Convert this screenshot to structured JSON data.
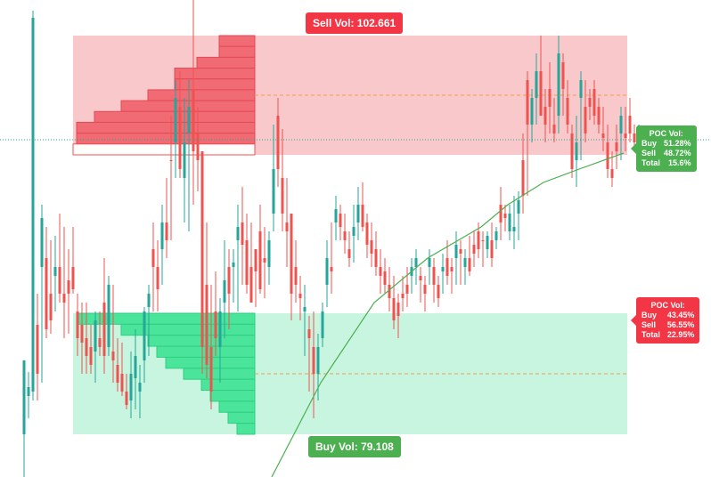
{
  "chart_data": {
    "type": "candlestick",
    "title": "",
    "xlabel": "",
    "ylabel": "",
    "grid": false,
    "colors": {
      "up": "#26a69a",
      "down": "#ef5350",
      "sell_zone_fill": "#f9c8cb",
      "buy_zone_fill": "#c8f5df",
      "sell_profile": "#f16b74",
      "buy_profile": "#4ae49a",
      "poc_line": "#f0a04b",
      "moving_average": "#4caf50",
      "last_price_line": "#26a69a"
    },
    "ylim": [
      0,
      536
    ],
    "candles": [
      [
        488,
        405,
        550,
        405
      ],
      [
        445,
        418,
        470,
        435
      ],
      [
        440,
        12,
        450,
        20
      ],
      [
        365,
        330,
        450,
        420
      ],
      [
        300,
        230,
        430,
        245
      ],
      [
        290,
        255,
        380,
        370
      ],
      [
        330,
        270,
        375,
        360
      ],
      [
        310,
        265,
        350,
        300
      ],
      [
        300,
        240,
        340,
        330
      ],
      [
        330,
        255,
        380,
        340
      ],
      [
        315,
        280,
        375,
        330
      ],
      [
        300,
        255,
        330,
        325
      ],
      [
        350,
        330,
        400,
        380
      ],
      [
        365,
        340,
        420,
        385
      ],
      [
        380,
        340,
        420,
        400
      ],
      [
        390,
        365,
        420,
        410
      ],
      [
        395,
        350,
        430,
        360
      ],
      [
        380,
        350,
        400,
        390
      ],
      [
        340,
        290,
        420,
        400
      ],
      [
        390,
        310,
        400,
        320
      ],
      [
        395,
        320,
        430,
        405
      ],
      [
        410,
        380,
        440,
        430
      ],
      [
        420,
        385,
        445,
        440
      ],
      [
        440,
        420,
        460,
        455
      ],
      [
        450,
        395,
        470,
        420
      ],
      [
        425,
        370,
        460,
        400
      ],
      [
        440,
        410,
        470,
        430
      ],
      [
        405,
        345,
        430,
        350
      ],
      [
        345,
        320,
        400,
        330
      ],
      [
        280,
        250,
        350,
        300
      ],
      [
        300,
        270,
        350,
        325
      ],
      [
        280,
        230,
        320,
        250
      ],
      [
        250,
        200,
        290,
        270
      ],
      [
        180,
        130,
        270,
        180
      ],
      [
        160,
        90,
        200,
        110
      ],
      [
        120,
        80,
        200,
        190
      ],
      [
        200,
        110,
        250,
        160
      ],
      [
        150,
        90,
        260,
        120
      ],
      [
        100,
        0,
        230,
        170
      ],
      [
        150,
        120,
        215,
        180
      ],
      [
        170,
        200,
        420,
        390
      ],
      [
        320,
        250,
        425,
        410
      ],
      [
        390,
        320,
        460,
        440
      ],
      [
        350,
        305,
        400,
        380
      ],
      [
        390,
        335,
        430,
        350
      ],
      [
        340,
        270,
        380,
        315
      ],
      [
        300,
        280,
        370,
        330
      ],
      [
        300,
        280,
        340,
        295
      ],
      [
        270,
        230,
        350,
        255
      ],
      [
        250,
        210,
        320,
        275
      ],
      [
        270,
        240,
        330,
        320
      ],
      [
        300,
        250,
        340,
        340
      ],
      [
        280,
        290,
        345,
        305
      ],
      [
        260,
        230,
        330,
        325
      ],
      [
        290,
        255,
        335,
        295
      ],
      [
        300,
        260,
        320,
        270
      ],
      [
        240,
        140,
        260,
        190
      ],
      [
        130,
        110,
        210,
        190
      ],
      [
        200,
        145,
        260,
        240
      ],
      [
        250,
        200,
        300,
        260
      ],
      [
        240,
        280,
        360,
        330
      ],
      [
        300,
        270,
        340,
        320
      ],
      [
        330,
        310,
        360,
        335
      ],
      [
        350,
        320,
        400,
        345
      ],
      [
        370,
        355,
        440,
        380
      ],
      [
        390,
        350,
        470,
        420
      ],
      [
        420,
        375,
        450,
        390
      ],
      [
        380,
        340,
        390,
        350
      ],
      [
        320,
        270,
        345,
        290
      ],
      [
        300,
        250,
        330,
        305
      ],
      [
        250,
        220,
        270,
        235
      ],
      [
        240,
        230,
        270,
        255
      ],
      [
        260,
        240,
        285,
        270
      ],
      [
        280,
        260,
        300,
        290
      ],
      [
        265,
        230,
        295,
        255
      ],
      [
        250,
        210,
        270,
        230
      ],
      [
        230,
        205,
        260,
        255
      ],
      [
        250,
        240,
        290,
        275
      ],
      [
        270,
        250,
        300,
        285
      ],
      [
        280,
        260,
        310,
        300
      ],
      [
        300,
        280,
        330,
        310
      ],
      [
        305,
        290,
        330,
        320
      ],
      [
        320,
        300,
        350,
        335
      ],
      [
        335,
        310,
        370,
        360
      ],
      [
        340,
        330,
        380,
        355
      ],
      [
        330,
        310,
        350,
        335
      ],
      [
        320,
        300,
        345,
        330
      ],
      [
        310,
        290,
        330,
        300
      ],
      [
        300,
        280,
        320,
        290
      ],
      [
        310,
        300,
        340,
        315
      ],
      [
        320,
        310,
        350,
        330
      ],
      [
        300,
        280,
        320,
        290
      ],
      [
        300,
        290,
        340,
        320
      ],
      [
        320,
        310,
        345,
        335
      ],
      [
        305,
        285,
        330,
        300
      ],
      [
        290,
        270,
        320,
        310
      ],
      [
        300,
        290,
        330,
        305
      ],
      [
        290,
        260,
        320,
        275
      ],
      [
        280,
        270,
        320,
        285
      ],
      [
        300,
        280,
        320,
        290
      ],
      [
        290,
        265,
        310,
        305
      ],
      [
        275,
        260,
        300,
        285
      ],
      [
        260,
        250,
        290,
        280
      ],
      [
        270,
        260,
        300,
        270
      ],
      [
        280,
        260,
        290,
        265
      ],
      [
        270,
        250,
        300,
        290
      ],
      [
        270,
        255,
        280,
        260
      ],
      [
        230,
        210,
        270,
        250
      ],
      [
        240,
        230,
        260,
        245
      ],
      [
        260,
        230,
        270,
        240
      ],
      [
        260,
        220,
        280,
        255
      ],
      [
        240,
        215,
        270,
        225
      ],
      [
        180,
        150,
        240,
        220
      ],
      [
        90,
        80,
        220,
        140
      ],
      [
        140,
        100,
        160,
        110
      ],
      [
        110,
        60,
        140,
        80
      ],
      [
        80,
        40,
        130,
        130
      ],
      [
        120,
        100,
        160,
        140
      ],
      [
        100,
        70,
        150,
        120
      ],
      [
        140,
        110,
        160,
        150
      ],
      [
        130,
        40,
        150,
        60
      ],
      [
        70,
        60,
        130,
        100
      ],
      [
        110,
        90,
        150,
        140
      ],
      [
        150,
        140,
        200,
        190
      ],
      [
        180,
        130,
        210,
        160
      ],
      [
        110,
        80,
        180,
        90
      ],
      [
        120,
        90,
        160,
        150
      ],
      [
        110,
        100,
        135,
        120
      ],
      [
        100,
        90,
        140,
        130
      ],
      [
        120,
        110,
        150,
        140
      ],
      [
        150,
        120,
        170,
        155
      ],
      [
        160,
        140,
        200,
        190
      ],
      [
        190,
        170,
        210,
        200
      ],
      [
        160,
        140,
        190,
        170
      ],
      [
        150,
        120,
        180,
        130
      ],
      [
        150,
        120,
        170,
        155
      ],
      [
        130,
        110,
        160,
        150
      ],
      [
        150,
        140,
        170,
        160
      ],
      [
        160,
        140,
        175,
        150
      ]
    ],
    "sell_zone": {
      "label_text": "Sell Vol: 102.661",
      "y_top": 40,
      "y_bottom": 174,
      "poc_y": 107,
      "profile_bars": [
        40,
        40,
        65,
        90,
        90,
        120,
        150,
        180,
        200,
        200,
        200
      ]
    },
    "buy_zone": {
      "label_text": "Buy Vol:  79.108",
      "y_top": 352,
      "y_bottom": 488,
      "poc_y": 420,
      "profile_bars": [
        200,
        150,
        120,
        110,
        100,
        80,
        60,
        50,
        40,
        30,
        20
      ]
    },
    "moving_average": [
      [
        305,
        536
      ],
      [
        360,
        430
      ],
      [
        420,
        340
      ],
      [
        480,
        290
      ],
      [
        540,
        255
      ],
      [
        570,
        230
      ],
      [
        610,
        205
      ],
      [
        650,
        190
      ],
      [
        700,
        172
      ]
    ],
    "last_price_y": 157
  },
  "labels": {
    "sell_vol": "Sell Vol: 102.661",
    "buy_vol": "Buy Vol:  79.108"
  },
  "poc_green": {
    "title": "POC Vol:",
    "buy_key": "Buy",
    "buy_val": "51.28%",
    "sell_key": "Sell",
    "sell_val": "48.72%",
    "total_key": "Total",
    "total_val": "15.6%"
  },
  "poc_red": {
    "title": "POC Vol:",
    "buy_key": "Buy",
    "buy_val": "43.45%",
    "sell_key": "Sell",
    "sell_val": "56.55%",
    "total_key": "Total",
    "total_val": "22.95%"
  }
}
